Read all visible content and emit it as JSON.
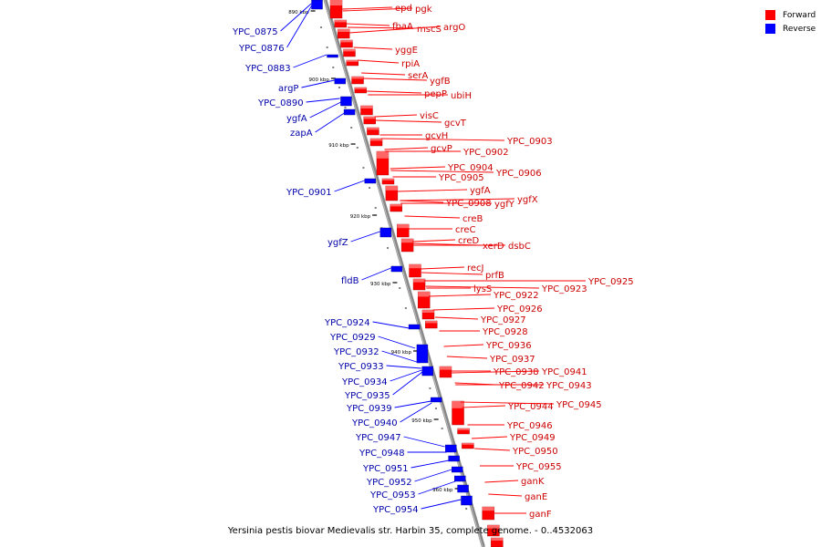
{
  "caption": "Yersinia pestis biovar Medievalis str. Harbin 35, complete genome. - 0..4532063",
  "legend": [
    {
      "label": "Forward",
      "color": "#ff0000"
    },
    {
      "label": "Reverse",
      "color": "#0000ff"
    }
  ],
  "colors": {
    "forward": "#ff0000",
    "forward_label": "#cc0000",
    "reverse": "#0000ff",
    "reverse_label": "#0000aa",
    "axis": "#888888"
  },
  "scale_ticks": [
    "890 kbp",
    "900 kbp",
    "910 kbp",
    "920 kbp",
    "930 kbp",
    "940 kbp",
    "950 kbp",
    "960 kbp"
  ],
  "forward_genes": [
    "epd",
    "pgk",
    "fbaA",
    "mscS",
    "argO",
    "yggE",
    "rpiA",
    "serA",
    "ygfB",
    "pepP",
    "ubiH",
    "visC",
    "gcvT",
    "gcvH",
    "gcvP",
    "YPC_0903",
    "YPC_0902",
    "YPC_0904",
    "YPC_0906",
    "YPC_0905",
    "ygfA",
    "YPC_0908",
    "ygfY",
    "ygfX",
    "creB",
    "creC",
    "creD",
    "xerD",
    "dsbC",
    "recJ",
    "prfB",
    "lysS",
    "YPC_0922",
    "YPC_0923",
    "YPC_0925",
    "YPC_0926",
    "YPC_0927",
    "YPC_0928",
    "YPC_0936",
    "YPC_0937",
    "YPC_0938",
    "YPC_0941",
    "YPC_0942",
    "YPC_0943",
    "YPC_0944",
    "YPC_0945",
    "YPC_0946",
    "YPC_0949",
    "YPC_0950",
    "YPC_0955",
    "ganK",
    "ganE",
    "ganF"
  ],
  "reverse_genes": [
    "YPC_0875",
    "YPC_0876",
    "YPC_0883",
    "argP",
    "YPC_0890",
    "ygfA",
    "zapA",
    "YPC_0901",
    "ygfZ",
    "fldB",
    "YPC_0924",
    "YPC_0929",
    "YPC_0932",
    "YPC_0933",
    "YPC_0934",
    "YPC_0935",
    "YPC_0939",
    "YPC_0940",
    "YPC_0947",
    "YPC_0948",
    "YPC_0951",
    "YPC_0952",
    "YPC_0953",
    "YPC_0954"
  ]
}
